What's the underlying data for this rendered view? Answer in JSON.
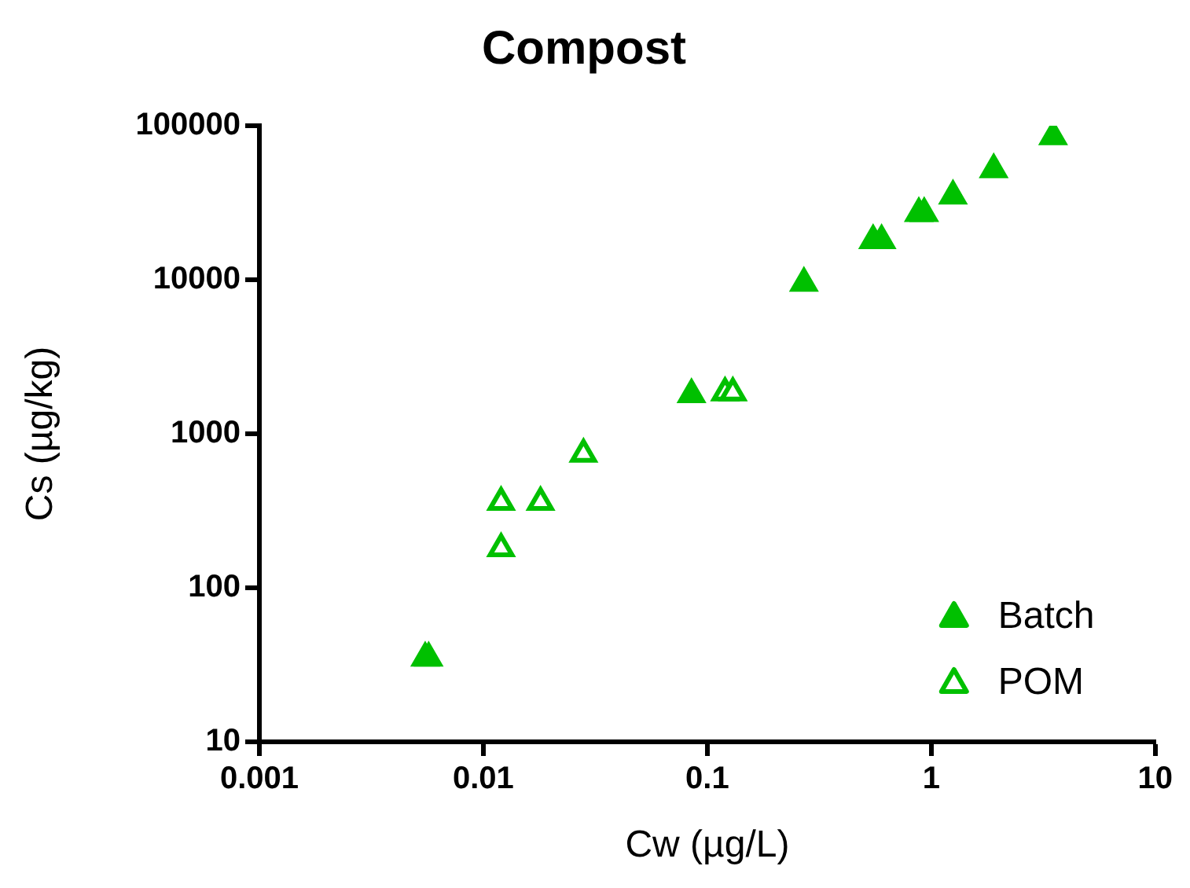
{
  "chart_data": {
    "type": "scatter",
    "title": "Compost",
    "xlabel": "Cw (µg/L)",
    "ylabel": "Cs (µg/kg)",
    "log": "xy",
    "xlim": [
      0.001,
      10
    ],
    "ylim": [
      10,
      100000
    ],
    "xticks": [
      0.001,
      0.01,
      0.1,
      1,
      10
    ],
    "yticks": [
      10,
      100,
      1000,
      10000,
      100000
    ],
    "grid": false,
    "legend": "bottom right",
    "marker": "triangle",
    "series": [
      {
        "name": "Batch",
        "color": "#00c000",
        "x": [
          0.0055,
          0.085,
          0.27,
          0.55,
          0.6,
          0.88,
          0.93,
          1.25,
          1.9,
          3.5
        ],
        "values": [
          35,
          1800,
          9500,
          18000,
          18000,
          27000,
          27000,
          35000,
          52000,
          85000
        ]
      },
      {
        "name": "POM",
        "color": "#00c000",
        "x": [
          0.0057,
          0.012,
          0.012,
          0.018,
          0.028,
          0.12,
          0.13
        ],
        "values": [
          35,
          360,
          180,
          360,
          740,
          1850,
          1850
        ]
      }
    ]
  }
}
